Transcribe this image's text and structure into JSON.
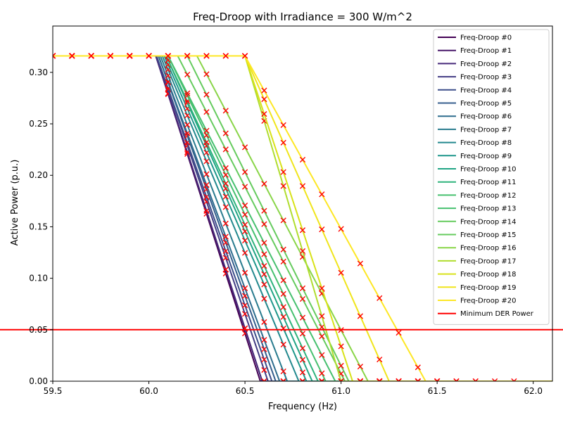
{
  "chart_data": {
    "type": "line",
    "title": "Freq-Droop with Irradiance = 300 W/m^2",
    "xlabel": "Frequency (Hz)",
    "ylabel": "Active Power (p.u.)",
    "xlim": [
      59.5,
      62.1
    ],
    "ylim": [
      0,
      0.345
    ],
    "xticks": [
      "59.5",
      "60.0",
      "60.5",
      "61.0",
      "61.5",
      "62.0"
    ],
    "yticks": [
      "0.00",
      "0.05",
      "0.10",
      "0.15",
      "0.20",
      "0.25",
      "0.30"
    ],
    "grid": false,
    "legend_position": "top-right",
    "p_max": 0.316,
    "series": [
      {
        "name": "Freq-Droop #0",
        "color": "#440154",
        "f_start": 60.036,
        "f_end": 60.58
      },
      {
        "name": "Freq-Droop #1",
        "color": "#481769",
        "f_start": 60.036,
        "f_end": 60.59
      },
      {
        "name": "Freq-Droop #2",
        "color": "#472a7a",
        "f_start": 60.036,
        "f_end": 60.59
      },
      {
        "name": "Freq-Droop #3",
        "color": "#433d84",
        "f_start": 60.04,
        "f_end": 60.62
      },
      {
        "name": "Freq-Droop #4",
        "color": "#3d4e8a",
        "f_start": 60.04,
        "f_end": 60.64
      },
      {
        "name": "Freq-Droop #5",
        "color": "#355e8d",
        "f_start": 60.05,
        "f_end": 60.66
      },
      {
        "name": "Freq-Droop #6",
        "color": "#2e6d8e",
        "f_start": 60.05,
        "f_end": 60.68
      },
      {
        "name": "Freq-Droop #7",
        "color": "#297b8e",
        "f_start": 60.06,
        "f_end": 60.72
      },
      {
        "name": "Freq-Droop #8",
        "color": "#23898e",
        "f_start": 60.07,
        "f_end": 60.78
      },
      {
        "name": "Freq-Droop #9",
        "color": "#1f978b",
        "f_start": 60.08,
        "f_end": 60.82
      },
      {
        "name": "Freq-Droop #10",
        "color": "#21a585",
        "f_start": 60.09,
        "f_end": 60.85
      },
      {
        "name": "Freq-Droop #11",
        "color": "#2eb37c",
        "f_start": 60.09,
        "f_end": 60.88
      },
      {
        "name": "Freq-Droop #12",
        "color": "#46c06f",
        "f_start": 60.1,
        "f_end": 60.92
      },
      {
        "name": "Freq-Droop #13",
        "color": "#46c06f",
        "f_start": 60.1,
        "f_end": 60.97
      },
      {
        "name": "Freq-Droop #14",
        "color": "#65cb5e",
        "f_start": 60.15,
        "f_end": 61.02
      },
      {
        "name": "Freq-Droop #15",
        "color": "#65cb5e",
        "f_start": 60.2,
        "f_end": 61.04
      },
      {
        "name": "Freq-Droop #16",
        "color": "#89d548",
        "f_start": 60.25,
        "f_end": 61.14
      },
      {
        "name": "Freq-Droop #17",
        "color": "#b0dd2f",
        "f_start": 60.5,
        "f_end": 61.0
      },
      {
        "name": "Freq-Droop #18",
        "color": "#d8e219",
        "f_start": 60.5,
        "f_end": 61.06
      },
      {
        "name": "Freq-Droop #19",
        "color": "#f0e51c",
        "f_start": 60.5,
        "f_end": 61.25
      },
      {
        "name": "Freq-Droop #20",
        "color": "#fde725",
        "f_start": 60.5,
        "f_end": 61.44
      }
    ],
    "reference_line": {
      "name": "Minimum DER Power",
      "y": 0.05,
      "color": "#ff0000"
    },
    "marker": {
      "symbol": "x",
      "color": "#ff0000"
    }
  }
}
